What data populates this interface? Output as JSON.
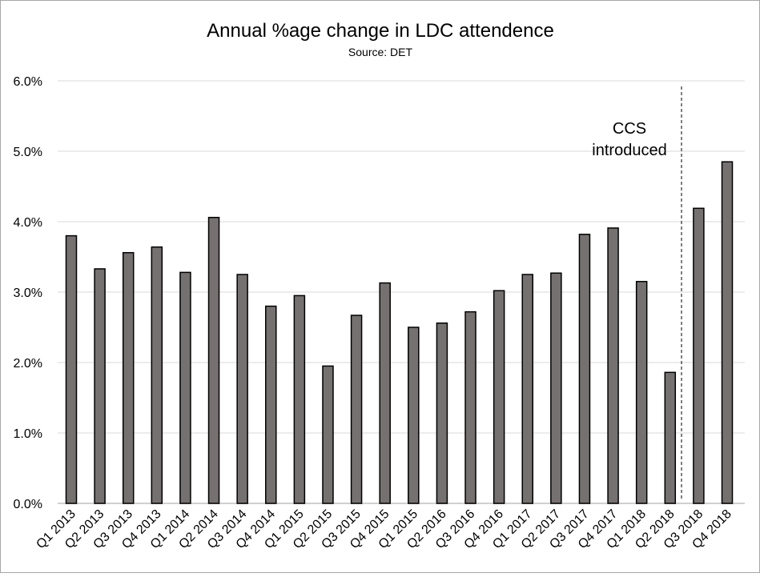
{
  "chart_data": {
    "type": "bar",
    "title": "Annual %age change in LDC attendence",
    "subtitle": "Source: DET",
    "xlabel": "",
    "ylabel": "",
    "ylim": [
      0,
      6
    ],
    "yticks": [
      "0.0%",
      "1.0%",
      "2.0%",
      "3.0%",
      "4.0%",
      "5.0%",
      "6.0%"
    ],
    "grid": true,
    "bar_color": "#767171",
    "categories": [
      "Q1 2013",
      "Q2 2013",
      "Q3 2013",
      "Q4 2013",
      "Q1 2014",
      "Q2 2014",
      "Q3 2014",
      "Q4 2014",
      "Q1 2015",
      "Q2 2015",
      "Q3 2015",
      "Q4 2015",
      "Q1 2015",
      "Q2 2016",
      "Q3 2016",
      "Q4 2016",
      "Q1 2017",
      "Q2 2017",
      "Q3 2017",
      "Q4 2017",
      "Q1 2018",
      "Q2 2018",
      "Q3 2018",
      "Q4 2018"
    ],
    "values": [
      3.8,
      3.33,
      3.56,
      3.64,
      3.28,
      4.06,
      3.25,
      2.8,
      2.95,
      1.95,
      2.67,
      3.13,
      2.5,
      2.56,
      2.72,
      3.02,
      3.25,
      3.27,
      3.82,
      3.91,
      3.15,
      1.86,
      4.19,
      4.85
    ],
    "annotation": {
      "lines": [
        "CCS",
        "introduced"
      ],
      "after_category_index": 21
    }
  }
}
